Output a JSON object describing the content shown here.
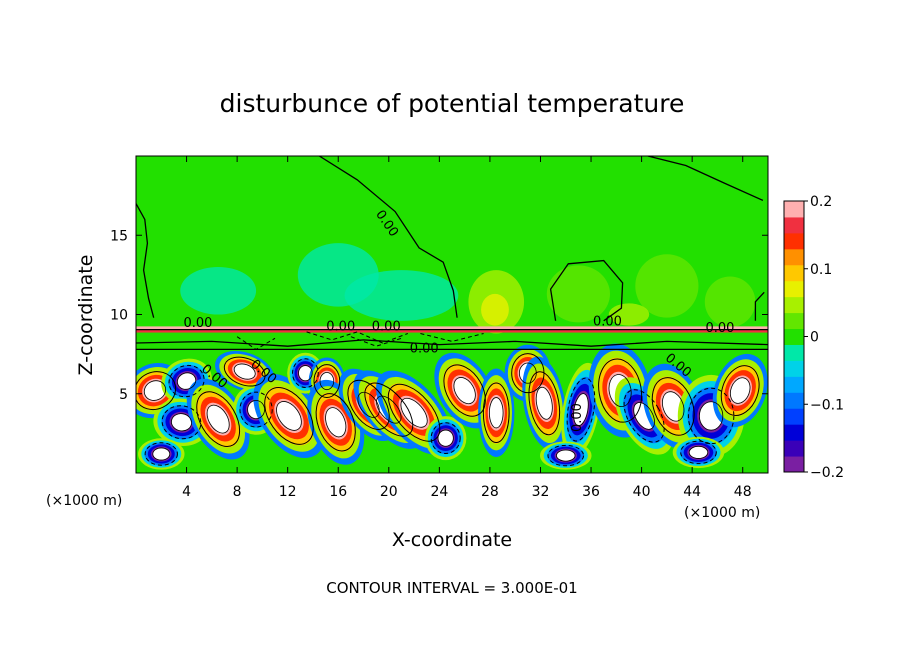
{
  "chart_data": {
    "type": "heatmap",
    "title": "disturbunce of potential temperature",
    "xlabel": "X-coordinate",
    "ylabel": "Z-coordinate",
    "x_unit": "(×1000 m)",
    "y_unit": "(×1000 m)",
    "xlim": [
      0,
      50
    ],
    "ylim": [
      0,
      20
    ],
    "x_ticks": [
      4,
      8,
      12,
      16,
      20,
      24,
      28,
      32,
      36,
      40,
      44,
      48
    ],
    "y_ticks": [
      5,
      10,
      15
    ],
    "colorbar": {
      "min": -0.2,
      "max": 0.2,
      "tick_values": [
        0.2,
        0.1,
        0,
        -0.1,
        -0.2
      ],
      "tick_labels": [
        "0.2",
        "0.1",
        "0",
        "−0.1",
        "−0.2"
      ],
      "levels": [
        {
          "value": -0.2,
          "color": "#7a1fa2"
        },
        {
          "value": -0.175,
          "color": "#3a00b8"
        },
        {
          "value": -0.15,
          "color": "#0000d8"
        },
        {
          "value": -0.125,
          "color": "#0040ff"
        },
        {
          "value": -0.1,
          "color": "#0078ff"
        },
        {
          "value": -0.075,
          "color": "#00a8ff"
        },
        {
          "value": -0.05,
          "color": "#00d2e8"
        },
        {
          "value": -0.025,
          "color": "#00e8a8"
        },
        {
          "value": 0.0,
          "color": "#22e000"
        },
        {
          "value": 0.025,
          "color": "#62e600"
        },
        {
          "value": 0.05,
          "color": "#a8f000"
        },
        {
          "value": 0.075,
          "color": "#e8f000"
        },
        {
          "value": 0.1,
          "color": "#ffc800"
        },
        {
          "value": 0.125,
          "color": "#ff9000"
        },
        {
          "value": 0.15,
          "color": "#ff3000"
        },
        {
          "value": 0.175,
          "color": "#f03040"
        },
        {
          "value": 0.2,
          "color": "#ffb0b0"
        }
      ]
    },
    "contour_labels": [
      {
        "text": "0.00",
        "x": 19.6,
        "z": 15.6
      },
      {
        "text": "0.00",
        "x": 4.9,
        "z": 9.2
      },
      {
        "text": "0.00",
        "x": 16.2,
        "z": 9.0
      },
      {
        "text": "0.00",
        "x": 19.8,
        "z": 9.0
      },
      {
        "text": "0.00",
        "x": 37.3,
        "z": 9.3
      },
      {
        "text": "0.00",
        "x": 46.2,
        "z": 8.9
      },
      {
        "text": "0.00",
        "x": 22.8,
        "z": 7.6
      },
      {
        "text": "0.00",
        "x": 6.0,
        "z": 5.9
      },
      {
        "text": "0.00",
        "x": 9.9,
        "z": 6.2
      },
      {
        "text": "0.00",
        "x": 42.7,
        "z": 6.6
      },
      {
        "text": "0.00",
        "x": 35.2,
        "z": 3.5
      }
    ],
    "contour_interval_text": "CONTOUR INTERVAL = 3.000E-01"
  }
}
